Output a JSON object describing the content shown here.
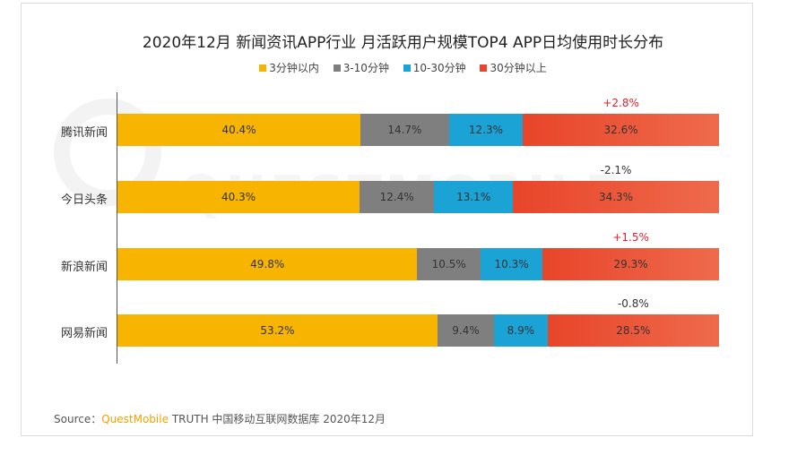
{
  "title": "2020年12月 新闻资讯APP行业 月活跃用户规模TOP4 APP日均使用时长分布",
  "legend": [
    {
      "label": "3分钟以内",
      "color": "#F7B400"
    },
    {
      "label": "3-10分钟",
      "color": "#7F7F7F"
    },
    {
      "label": "10-30分钟",
      "color": "#1BA3D6"
    },
    {
      "label": "30分钟以上",
      "color": "#E8452A"
    }
  ],
  "source": {
    "prefix": "Source：",
    "brand": "QuestMobile",
    "rest": "TRUTH 中国移动互联网数据库 2020年12月"
  },
  "watermark": "QUESTMOBILE",
  "chart_data": {
    "type": "bar",
    "orientation": "horizontal",
    "stacked": true,
    "normalized": true,
    "categories": [
      "腾讯新闻",
      "今日头条",
      "新浪新闻",
      "网易新闻"
    ],
    "series": [
      {
        "name": "3分钟以内",
        "values": [
          40.4,
          40.3,
          49.8,
          53.2
        ],
        "labels": [
          "40.4%",
          "40.3%",
          "49.8%",
          "53.2%"
        ]
      },
      {
        "name": "3-10分钟",
        "values": [
          14.7,
          12.4,
          10.5,
          9.4
        ],
        "labels": [
          "14.7%",
          "12.4%",
          "10.5%",
          "9.4%"
        ]
      },
      {
        "name": "10-30分钟",
        "values": [
          12.3,
          13.1,
          10.3,
          8.9
        ],
        "labels": [
          "12.3%",
          "13.1%",
          "10.3%",
          "8.9%"
        ]
      },
      {
        "name": "30分钟以上",
        "values": [
          32.6,
          34.3,
          29.3,
          28.5
        ],
        "labels": [
          "32.6%",
          "34.3%",
          "29.3%",
          "28.5%"
        ]
      }
    ],
    "annotations": [
      {
        "category": "腾讯新闻",
        "text": "+2.8%",
        "color": "#E8202A"
      },
      {
        "category": "今日头条",
        "text": "-2.1%",
        "color": "#333333"
      },
      {
        "category": "新浪新闻",
        "text": "+1.5%",
        "color": "#E8202A"
      },
      {
        "category": "网易新闻",
        "text": "-0.8%",
        "color": "#333333"
      }
    ],
    "legend_position": "top"
  }
}
